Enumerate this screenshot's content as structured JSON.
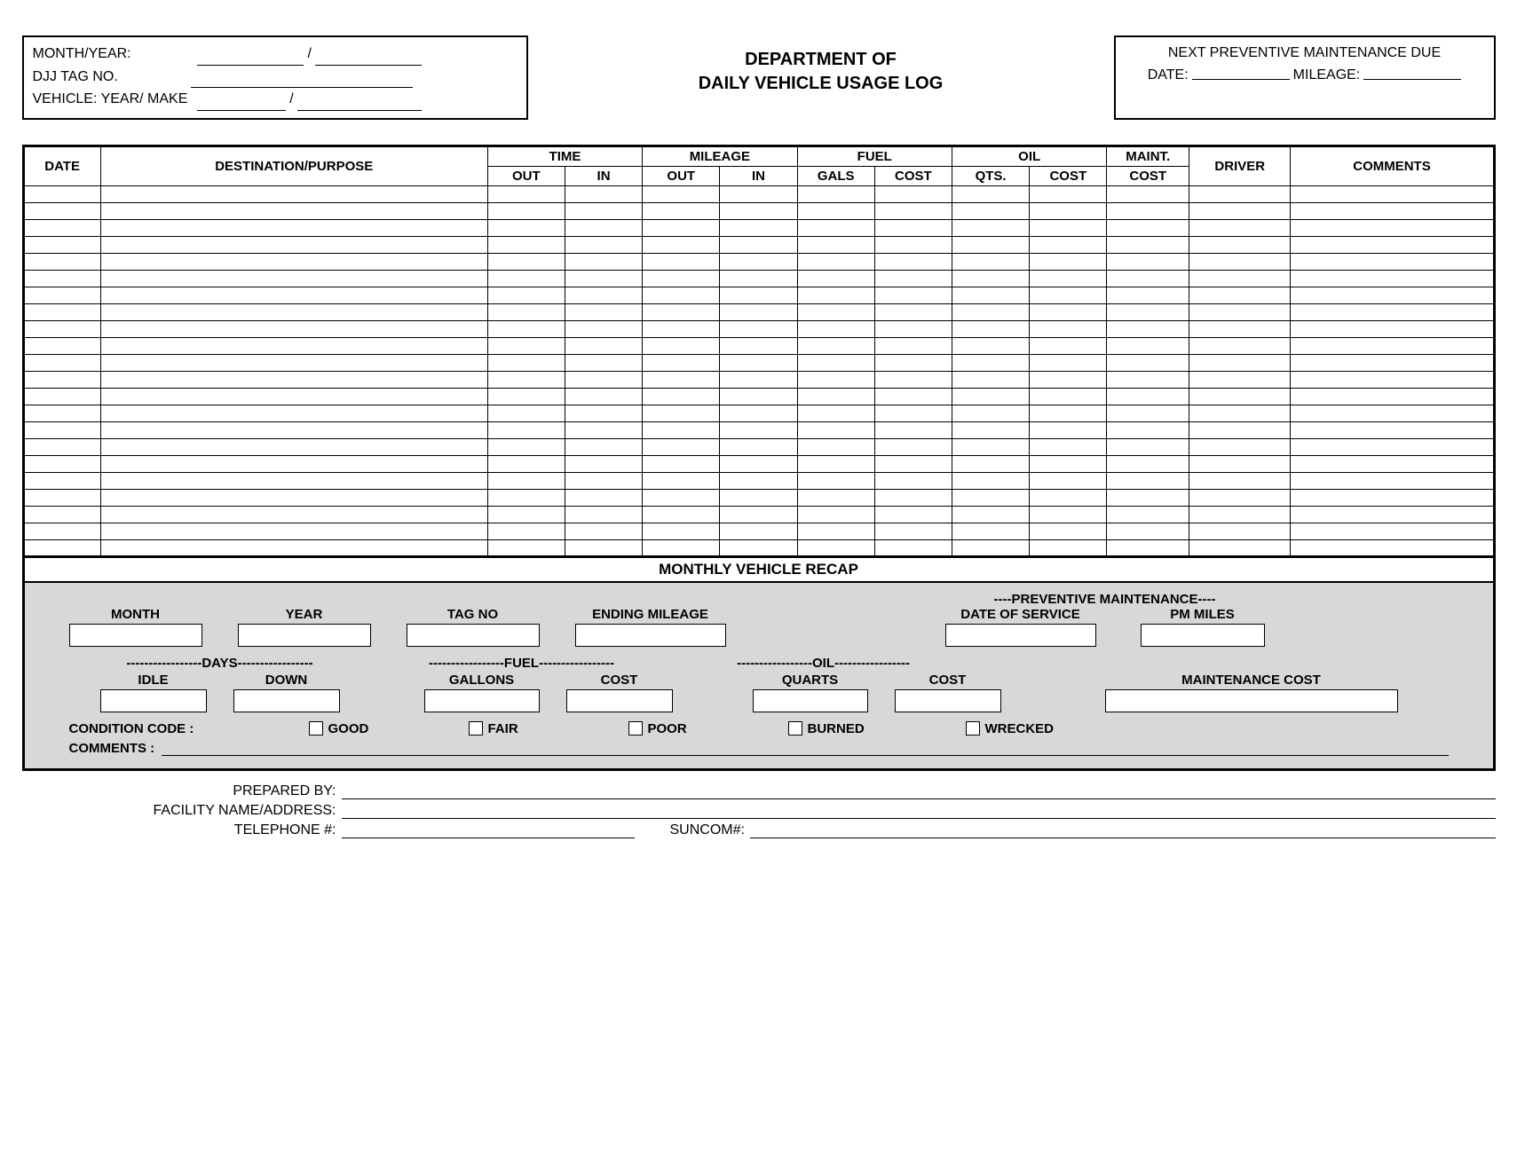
{
  "header": {
    "left": {
      "month_year_label": "MONTH/YEAR:",
      "djj_tag_label": "DJJ TAG NO.",
      "vehicle_label": "VEHICLE: YEAR/ MAKE",
      "slash": "/"
    },
    "center": {
      "line1": "DEPARTMENT OF",
      "line2": "DAILY VEHICLE USAGE LOG"
    },
    "right": {
      "title": "NEXT PREVENTIVE MAINTENANCE DUE",
      "date_label": "DATE:",
      "mileage_label": "MILEAGE:"
    }
  },
  "table": {
    "group_headers": {
      "time": "TIME",
      "mileage": "MILEAGE",
      "fuel": "FUEL",
      "oil": "OIL",
      "maint": "MAINT."
    },
    "sub_headers": {
      "date": "DATE",
      "dest": "DESTINATION/PURPOSE",
      "out": "OUT",
      "in": "IN",
      "gals": "GALS",
      "cost": "COST",
      "qts": "QTS.",
      "maint_cost": "COST",
      "driver": "DRIVER",
      "comments": "COMMENTS"
    },
    "row_count": 22
  },
  "recap": {
    "title": "MONTHLY VEHICLE RECAP",
    "row1": {
      "month": "MONTH",
      "year": "YEAR",
      "tag": "TAG NO",
      "ending": "ENDING MILEAGE",
      "pm_header": "----PREVENTIVE MAINTENANCE----",
      "date_service": "DATE OF SERVICE",
      "pm_miles": "PM MILES"
    },
    "dash_headers": {
      "days": "DAYS",
      "fuel": "FUEL",
      "oil": "OIL"
    },
    "row2": {
      "idle": "IDLE",
      "down": "DOWN",
      "gallons": "GALLONS",
      "cost": "COST",
      "quarts": "QUARTS",
      "oil_cost": "COST",
      "maint_cost": "MAINTENANCE COST"
    },
    "condition": {
      "label": "CONDITION CODE :",
      "good": "GOOD",
      "fair": "FAIR",
      "poor": "POOR",
      "burned": "BURNED",
      "wrecked": "WRECKED"
    },
    "comments_label": "COMMENTS :"
  },
  "footer": {
    "prepared": "PREPARED BY:",
    "facility": "FACILITY NAME/ADDRESS:",
    "telephone": "TELEPHONE #:",
    "suncom": "SUNCOM#:"
  }
}
